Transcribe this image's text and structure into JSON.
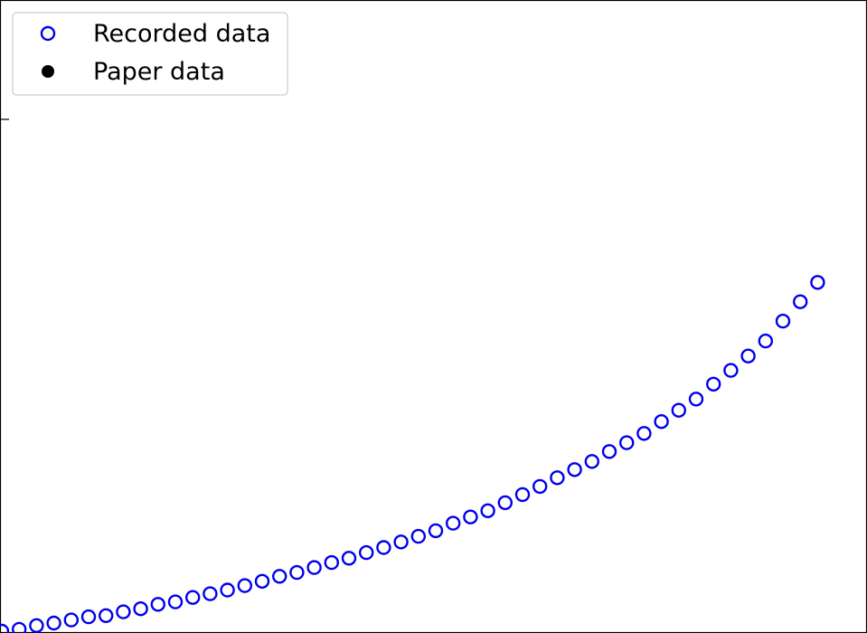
{
  "chart_data": {
    "type": "scatter",
    "title": "",
    "xlabel": "",
    "ylabel": "",
    "xlim": [
      0,
      48
    ],
    "ylim": [
      0,
      100
    ],
    "grid": false,
    "legend_position": "top-left",
    "series": [
      {
        "name": "Recorded data",
        "marker": "open-circle",
        "color": "#0000ee",
        "x": [
          0,
          1,
          2,
          3,
          4,
          5,
          6,
          7,
          8,
          9,
          10,
          11,
          12,
          13,
          14,
          15,
          16,
          17,
          18,
          19,
          20,
          21,
          22,
          23,
          24,
          25,
          26,
          27,
          28,
          29,
          30,
          31,
          32,
          33,
          34,
          35,
          36,
          37,
          38,
          39,
          40,
          41,
          42,
          43,
          44,
          45,
          46,
          47
        ],
        "y": [
          0.0,
          0.3,
          0.9,
          1.3,
          1.8,
          2.3,
          2.5,
          3.1,
          3.6,
          4.3,
          4.7,
          5.4,
          6.0,
          6.6,
          7.3,
          8.0,
          8.8,
          9.4,
          10.2,
          11.0,
          11.7,
          12.6,
          13.4,
          14.3,
          15.2,
          16.1,
          17.3,
          18.3,
          19.3,
          20.6,
          21.9,
          23.2,
          24.6,
          25.9,
          27.2,
          28.8,
          30.2,
          31.7,
          33.6,
          35.4,
          37.2,
          39.6,
          41.8,
          44.1,
          46.5,
          49.7,
          52.8,
          55.9
        ]
      },
      {
        "name": "Paper data",
        "marker": "filled-circle",
        "color": "#000000",
        "x": [],
        "y": []
      }
    ]
  }
}
